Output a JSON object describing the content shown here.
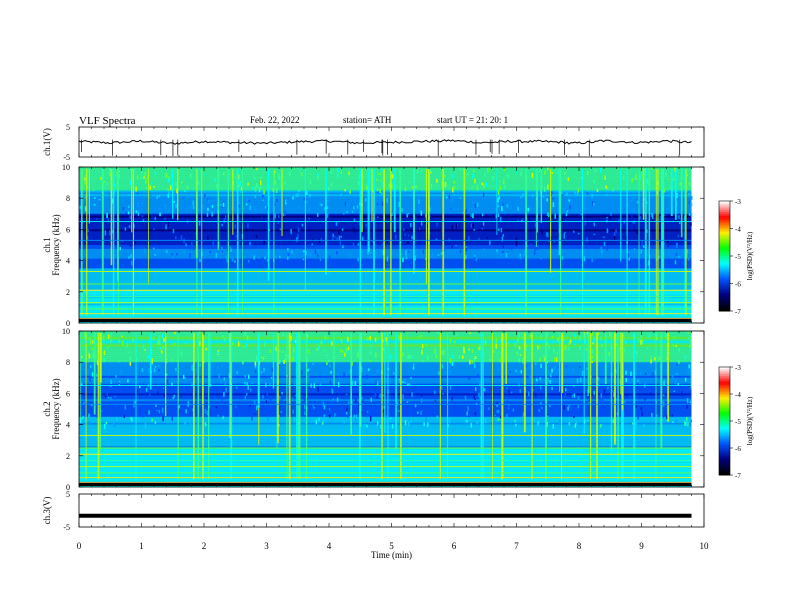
{
  "header": {
    "title": "VLF  Spectra",
    "date": "Feb. 22, 2022",
    "station": "station= ATH",
    "start_ut": "start  UT  =    21: 20: 1"
  },
  "colorbar": {
    "label": "log(PSD)(V²/Hz)",
    "ticks": [
      "-3",
      "-4",
      "-5",
      "-6",
      "-7"
    ],
    "colors": [
      "#ffffff",
      "#ff0000",
      "#ffee00",
      "#00ff00",
      "#00ffff",
      "#0055ff",
      "#000080",
      "#000000"
    ]
  },
  "chart_data": [
    {
      "type": "line",
      "panel": "ch1-waveform",
      "ylabel": "ch.1(V)",
      "yticks": [
        "5",
        "-5"
      ],
      "ylim": [
        -5,
        5
      ],
      "x": [
        0,
        0.5,
        1,
        1.5,
        2,
        2.5,
        3,
        3.5,
        4,
        4.5,
        5,
        5.5,
        6,
        6.5,
        7,
        7.5,
        8,
        8.5,
        9,
        9.5,
        9.8
      ],
      "values": [
        0.2,
        -0.3,
        0.3,
        -0.5,
        0.2,
        -0.2,
        -0.4,
        0.1,
        0.3,
        -0.3,
        -0.1,
        0.2,
        0.4,
        -0.2,
        0.2,
        0.1,
        -0.3,
        0.3,
        -0.1,
        0.2,
        -0.2
      ],
      "xlim": [
        0,
        10
      ]
    },
    {
      "type": "heatmap",
      "panel": "ch1-spectrogram",
      "ylabel_line1": "ch.1",
      "ylabel_line2": "Frequency  (kHz)",
      "yticks": [
        "10",
        "8",
        "6",
        "4",
        "2",
        "0"
      ],
      "ylim": [
        0,
        10
      ],
      "xlim": [
        0,
        10
      ]
    },
    {
      "type": "heatmap",
      "panel": "ch2-spectrogram",
      "ylabel_line1": "ch.2",
      "ylabel_line2": "Frequency  (kHz)",
      "yticks": [
        "10",
        "8",
        "6",
        "4",
        "2",
        "0"
      ],
      "ylim": [
        0,
        10
      ],
      "xlim": [
        0,
        10
      ]
    },
    {
      "type": "line",
      "panel": "ch3-waveform",
      "ylabel": "ch.3(V)",
      "yticks": [
        "5",
        "-5"
      ],
      "ylim": [
        -5,
        5
      ],
      "x": [
        0,
        9.8
      ],
      "values": [
        -1.6,
        -1.6
      ],
      "xlim": [
        0,
        10
      ],
      "xlabel": "Time  (min)",
      "xticks": [
        "0",
        "1",
        "2",
        "3",
        "4",
        "5",
        "6",
        "7",
        "8",
        "9",
        "10"
      ]
    }
  ]
}
